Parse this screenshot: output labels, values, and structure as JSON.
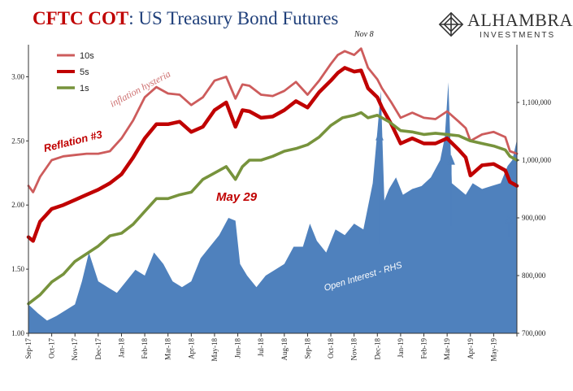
{
  "title": {
    "part1": "CFTC COT",
    "part2": ": US Treasury Bond Futures"
  },
  "logo": {
    "name": "ALHAMBRA",
    "sub": "INVESTMENTS"
  },
  "colors": {
    "tenY": "#cd5c5c",
    "fiveY": "#c00000",
    "oneY": "#77933c",
    "oi": "#4f81bd",
    "annot_red": "#c00000",
    "annot_pink": "#cd6f6f"
  },
  "chart_data": {
    "type": "line",
    "title": "CFTC COT: US Treasury Bond Futures",
    "y_left": {
      "min": 1.0,
      "max": 3.25,
      "ticks": [
        "1.00",
        "1.50",
        "2.00",
        "2.50",
        "3.00"
      ]
    },
    "y_right": {
      "min": 700000,
      "max": 1200000,
      "ticks": [
        "700,000",
        "800,000",
        "900,000",
        "1,000,000",
        "1,100,000"
      ]
    },
    "x_labels": [
      "Sep-17",
      "Oct-17",
      "Nov-17",
      "Dec-17",
      "Jan-18",
      "Feb-18",
      "Mar-18",
      "Apr-18",
      "May-18",
      "Jun-18",
      "Jul-18",
      "Aug-18",
      "Sep-18",
      "Oct-18",
      "Nov-18",
      "Dec-18",
      "Jan-19",
      "Feb-19",
      "Mar-19",
      "Apr-19",
      "May-19"
    ],
    "x_months": [
      0,
      1,
      2,
      3,
      4,
      5,
      6,
      7,
      8,
      9,
      10,
      11,
      12,
      13,
      14,
      15,
      16,
      17,
      18,
      19,
      20,
      21
    ],
    "legend": [
      "10s",
      "5s",
      "1s"
    ],
    "series": [
      {
        "name": "10s",
        "key": "tenY",
        "x": [
          0,
          0.2,
          0.5,
          1,
          1.5,
          2,
          2.5,
          3,
          3.5,
          4,
          4.5,
          5,
          5.5,
          6,
          6.5,
          7,
          7.5,
          8,
          8.5,
          8.9,
          9.2,
          9.5,
          10,
          10.5,
          11,
          11.5,
          12,
          12.5,
          13,
          13.3,
          13.6,
          14,
          14.3,
          14.6,
          15,
          15.2,
          15.6,
          16,
          16.5,
          17,
          17.5,
          18,
          18.5,
          18.8,
          19,
          19.5,
          20,
          20.5,
          20.7,
          21
        ],
        "values": [
          2.15,
          2.1,
          2.22,
          2.35,
          2.38,
          2.39,
          2.4,
          2.4,
          2.42,
          2.52,
          2.66,
          2.84,
          2.92,
          2.87,
          2.86,
          2.78,
          2.84,
          2.97,
          3.0,
          2.83,
          2.94,
          2.93,
          2.86,
          2.85,
          2.89,
          2.96,
          2.86,
          2.97,
          3.1,
          3.17,
          3.2,
          3.17,
          3.22,
          3.07,
          2.98,
          2.91,
          2.8,
          2.68,
          2.72,
          2.68,
          2.67,
          2.73,
          2.65,
          2.6,
          2.5,
          2.55,
          2.57,
          2.53,
          2.42,
          2.4
        ]
      },
      {
        "name": "5s",
        "key": "fiveY",
        "x": [
          0,
          0.2,
          0.5,
          1,
          1.5,
          2,
          2.5,
          3,
          3.5,
          4,
          4.5,
          5,
          5.5,
          6,
          6.5,
          7,
          7.5,
          8,
          8.5,
          8.9,
          9.2,
          9.5,
          10,
          10.5,
          11,
          11.5,
          12,
          12.5,
          13,
          13.3,
          13.6,
          14,
          14.3,
          14.6,
          15,
          15.2,
          15.6,
          16,
          16.5,
          17,
          17.5,
          18,
          18.5,
          18.8,
          19,
          19.5,
          20,
          20.5,
          20.7,
          21
        ],
        "values": [
          1.75,
          1.72,
          1.87,
          1.97,
          2.0,
          2.04,
          2.08,
          2.12,
          2.17,
          2.24,
          2.37,
          2.52,
          2.63,
          2.63,
          2.65,
          2.57,
          2.61,
          2.74,
          2.8,
          2.61,
          2.74,
          2.73,
          2.68,
          2.69,
          2.74,
          2.81,
          2.76,
          2.88,
          2.97,
          3.03,
          3.07,
          3.04,
          3.05,
          2.91,
          2.84,
          2.76,
          2.63,
          2.48,
          2.52,
          2.48,
          2.48,
          2.52,
          2.43,
          2.37,
          2.23,
          2.31,
          2.32,
          2.27,
          2.18,
          2.15
        ]
      },
      {
        "name": "1s",
        "key": "oneY",
        "x": [
          0,
          0.5,
          1,
          1.5,
          2,
          2.5,
          3,
          3.5,
          4,
          4.5,
          5,
          5.5,
          6,
          6.5,
          7,
          7.5,
          8,
          8.5,
          8.9,
          9.2,
          9.5,
          10,
          10.5,
          11,
          11.5,
          12,
          12.5,
          13,
          13.5,
          14,
          14.3,
          14.6,
          15,
          15.5,
          16,
          16.5,
          17,
          17.5,
          18,
          18.5,
          19,
          19.5,
          20,
          20.5,
          20.7,
          21
        ],
        "values": [
          1.23,
          1.3,
          1.4,
          1.46,
          1.56,
          1.62,
          1.68,
          1.76,
          1.78,
          1.85,
          1.95,
          2.05,
          2.05,
          2.08,
          2.1,
          2.2,
          2.25,
          2.3,
          2.2,
          2.3,
          2.35,
          2.35,
          2.38,
          2.42,
          2.44,
          2.47,
          2.53,
          2.62,
          2.68,
          2.7,
          2.72,
          2.68,
          2.7,
          2.65,
          2.58,
          2.57,
          2.55,
          2.56,
          2.55,
          2.54,
          2.5,
          2.48,
          2.46,
          2.43,
          2.38,
          2.35
        ]
      },
      {
        "name": "Open Interest - RHS",
        "key": "oi",
        "type": "area",
        "x": [
          0,
          0.4,
          0.8,
          1.2,
          1.6,
          2,
          2.3,
          2.6,
          3,
          3.4,
          3.8,
          4.2,
          4.6,
          5,
          5.4,
          5.8,
          6.2,
          6.6,
          7,
          7.4,
          7.8,
          8.2,
          8.6,
          8.9,
          9.1,
          9.4,
          9.8,
          10.2,
          10.6,
          11,
          11.4,
          11.8,
          12.1,
          12.4,
          12.8,
          13.2,
          13.6,
          14,
          14.4,
          14.8,
          15,
          15.15,
          15.3,
          15.5,
          15.8,
          16.1,
          16.5,
          16.9,
          17.3,
          17.7,
          17.9,
          18.05,
          18.2,
          18.5,
          18.8,
          19.1,
          19.5,
          19.9,
          20.3,
          20.6,
          20.8,
          21
        ],
        "values": [
          750000,
          735000,
          722000,
          730000,
          740000,
          750000,
          790000,
          840000,
          790000,
          780000,
          770000,
          790000,
          810000,
          800000,
          840000,
          820000,
          790000,
          780000,
          790000,
          830000,
          850000,
          870000,
          900000,
          895000,
          820000,
          800000,
          780000,
          800000,
          810000,
          820000,
          850000,
          850000,
          890000,
          860000,
          840000,
          880000,
          870000,
          890000,
          880000,
          960000,
          1050000,
          1120000,
          930000,
          950000,
          970000,
          940000,
          950000,
          955000,
          970000,
          1000000,
          1040000,
          1135000,
          960000,
          950000,
          940000,
          960000,
          950000,
          955000,
          960000,
          990000,
          1000000,
          1035000
        ]
      }
    ],
    "annotations": {
      "inflation": "inflation hysteria",
      "reflation": "Reflation #3",
      "may29": "May 29",
      "nov8": "Nov 8",
      "oi_label": "Open Interest - RHS"
    }
  }
}
